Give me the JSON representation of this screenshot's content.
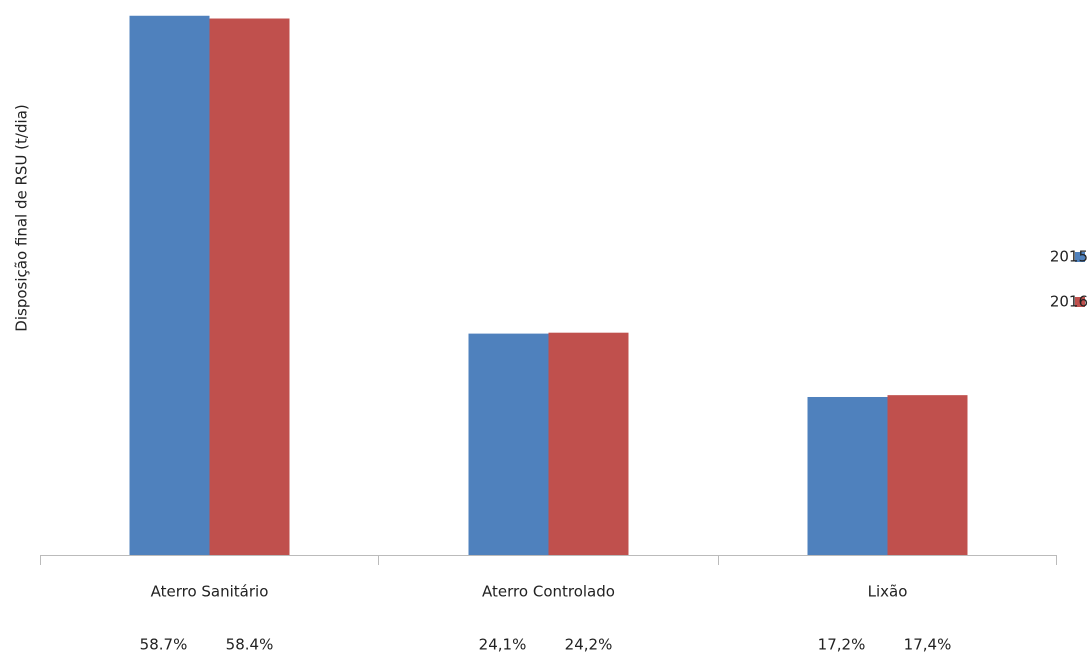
{
  "chart_data": {
    "type": "bar",
    "y_label": "Disposição final de RSU (t/dia)",
    "categories": [
      "Aterro Sanitário",
      "Aterro Controlado",
      "Lixão"
    ],
    "series": [
      {
        "name": "2015",
        "color": "#4f81bd",
        "values": [
          58.7,
          24.1,
          17.2
        ],
        "value_labels": [
          "58.7%",
          "24,1%",
          "17,2%"
        ]
      },
      {
        "name": "2016",
        "color": "#c0504d",
        "values": [
          58.4,
          24.2,
          17.4
        ],
        "value_labels": [
          "58.4%",
          "24,2%",
          "17,4%"
        ]
      }
    ],
    "ylim": [
      0,
      59
    ],
    "legend": "right"
  }
}
